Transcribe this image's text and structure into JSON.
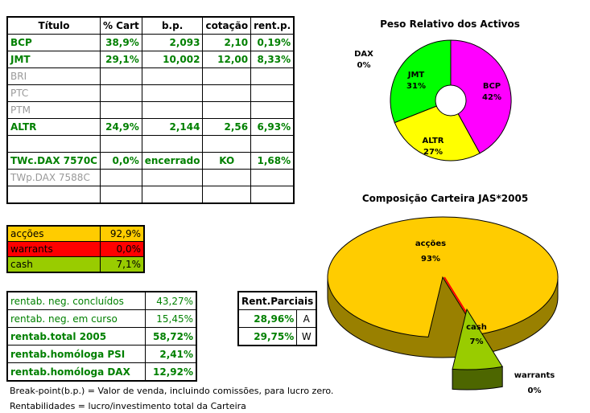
{
  "holdings": {
    "headers": [
      "Título",
      "% Cart",
      "b.p.",
      "cotação",
      "rent.p."
    ],
    "rows": [
      {
        "title": "BCP",
        "cart": "38,9%",
        "bp": "2,093",
        "cot": "2,10",
        "rent": "0,19%",
        "active": true
      },
      {
        "title": "JMT",
        "cart": "29,1%",
        "bp": "10,002",
        "cot": "12,00",
        "rent": "8,33%",
        "active": true
      },
      {
        "title": "BRI",
        "cart": "",
        "bp": "",
        "cot": "",
        "rent": "",
        "active": false
      },
      {
        "title": "PTC",
        "cart": "",
        "bp": "",
        "cot": "",
        "rent": "",
        "active": false
      },
      {
        "title": "PTM",
        "cart": "",
        "bp": "",
        "cot": "",
        "rent": "",
        "active": false
      },
      {
        "title": "ALTR",
        "cart": "24,9%",
        "bp": "2,144",
        "cot": "2,56",
        "rent": "6,93%",
        "active": true
      },
      {
        "title": "",
        "cart": "",
        "bp": "",
        "cot": "",
        "rent": "",
        "active": false
      },
      {
        "title": "TWc.DAX 7570C",
        "cart": "0,0%",
        "bp": "encerrado",
        "cot": "KO",
        "rent": "1,68%",
        "active": true
      },
      {
        "title": "TWp.DAX 7588C",
        "cart": "",
        "bp": "",
        "cot": "",
        "rent": "",
        "active": false
      },
      {
        "title": "",
        "cart": "",
        "bp": "",
        "cot": "",
        "rent": "",
        "active": false
      }
    ]
  },
  "allocation": [
    {
      "label": "acções",
      "value": "92,9%",
      "color": "#ffcc00"
    },
    {
      "label": "warrants",
      "value": "0,0%",
      "color": "#ff0000"
    },
    {
      "label": "cash",
      "value": "7,1%",
      "color": "#99cc00"
    }
  ],
  "returns": [
    {
      "label": "rentab. neg. concluídos",
      "value": "43,27%",
      "bold": false
    },
    {
      "label": "rentab. neg. em curso",
      "value": "15,45%",
      "bold": false
    },
    {
      "label": "rentab.total 2005",
      "value": "58,72%",
      "bold": true
    },
    {
      "label": "rentab.homóloga PSI",
      "value": "2,41%",
      "bold": true
    },
    {
      "label": "rentab.homóloga DAX",
      "value": "12,92%",
      "bold": true
    }
  ],
  "partial": {
    "title": "Rent.Parciais",
    "rows": [
      {
        "value": "28,96%",
        "code": "A"
      },
      {
        "value": "29,75%",
        "code": "W"
      }
    ]
  },
  "notes": [
    "Break-point(b.p.) = Valor de venda, incluindo comissões, para lucro zero.",
    "Rentabilidades = lucro/investimento total da Carteira"
  ],
  "chart_data": [
    {
      "type": "pie",
      "title": "Peso Relativo dos Activos",
      "donut": true,
      "slices": [
        {
          "label": "BCP",
          "value": 42,
          "text": "42%",
          "color": "#ff00ff"
        },
        {
          "label": "ALTR",
          "value": 27,
          "text": "27%",
          "color": "#ffff00"
        },
        {
          "label": "JMT",
          "value": 31,
          "text": "31%",
          "color": "#00ff00"
        },
        {
          "label": "DAX",
          "value": 0,
          "text": "0%",
          "color": "#00ccff"
        }
      ]
    },
    {
      "type": "pie",
      "title": "Composição Carteira JAS*2005",
      "3d": true,
      "slices": [
        {
          "label": "acções",
          "value": 93,
          "text": "93%",
          "color": "#ffcc00"
        },
        {
          "label": "cash",
          "value": 7,
          "text": "7%",
          "color": "#99cc00"
        },
        {
          "label": "warrants",
          "value": 0,
          "text": "0%",
          "color": "#ff0000"
        }
      ]
    }
  ]
}
